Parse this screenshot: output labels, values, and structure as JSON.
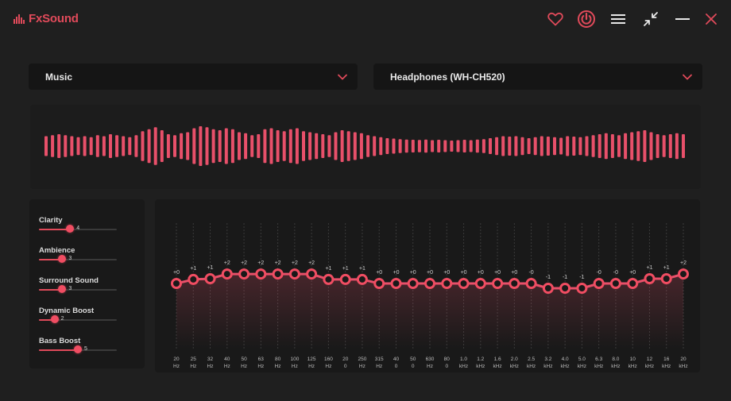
{
  "app": {
    "name": "FxSound"
  },
  "colors": {
    "accent": "#e8506a",
    "background": "#1f1f1f",
    "panel": "#191919"
  },
  "titlebar": {
    "icons": [
      "heart-icon",
      "power-icon",
      "menu-icon",
      "minimize-window-icon",
      "minimize-icon",
      "close-icon"
    ]
  },
  "preset": {
    "label": "Music",
    "icon": "chevron-down-icon"
  },
  "output_device": {
    "label": "Headphones (WH-CH520)",
    "icon": "chevron-down-icon"
  },
  "visualizer": {
    "levels": [
      0.5,
      0.55,
      0.6,
      0.55,
      0.5,
      0.45,
      0.5,
      0.45,
      0.55,
      0.5,
      0.6,
      0.55,
      0.5,
      0.45,
      0.55,
      0.75,
      0.85,
      0.95,
      0.8,
      0.6,
      0.55,
      0.65,
      0.7,
      0.9,
      1.0,
      0.95,
      0.85,
      0.8,
      0.9,
      0.85,
      0.7,
      0.65,
      0.55,
      0.6,
      0.85,
      0.9,
      0.8,
      0.75,
      0.85,
      0.9,
      0.75,
      0.7,
      0.65,
      0.6,
      0.55,
      0.7,
      0.8,
      0.75,
      0.7,
      0.65,
      0.55,
      0.5,
      0.45,
      0.4,
      0.38,
      0.35,
      0.33,
      0.32,
      0.31,
      0.33,
      0.3,
      0.32,
      0.3,
      0.28,
      0.3,
      0.32,
      0.3,
      0.33,
      0.35,
      0.4,
      0.45,
      0.5,
      0.48,
      0.5,
      0.45,
      0.4,
      0.45,
      0.5,
      0.48,
      0.45,
      0.42,
      0.5,
      0.48,
      0.45,
      0.5,
      0.55,
      0.6,
      0.65,
      0.6,
      0.55,
      0.65,
      0.7,
      0.75,
      0.8,
      0.7,
      0.6,
      0.55,
      0.6,
      0.65,
      0.6
    ]
  },
  "effects": [
    {
      "name": "Clarity",
      "value": "4",
      "level": 0.4
    },
    {
      "name": "Ambience",
      "value": "3",
      "level": 0.3
    },
    {
      "name": "Surround Sound",
      "value": "3",
      "level": 0.3
    },
    {
      "name": "Dynamic Boost",
      "value": "2",
      "level": 0.2
    },
    {
      "name": "Bass Boost",
      "value": "5",
      "level": 0.5
    }
  ],
  "equalizer": {
    "bands": [
      {
        "freq": [
          "20",
          "Hz"
        ],
        "gain_label": "+0",
        "gain": 0
      },
      {
        "freq": [
          "25",
          "Hz"
        ],
        "gain_label": "+1",
        "gain": 0.6
      },
      {
        "freq": [
          "32",
          "Hz"
        ],
        "gain_label": "+1",
        "gain": 0.7
      },
      {
        "freq": [
          "40",
          "Hz"
        ],
        "gain_label": "+2",
        "gain": 1.4
      },
      {
        "freq": [
          "50",
          "Hz"
        ],
        "gain_label": "+2",
        "gain": 1.4
      },
      {
        "freq": [
          "63",
          "Hz"
        ],
        "gain_label": "+2",
        "gain": 1.4
      },
      {
        "freq": [
          "80",
          "Hz"
        ],
        "gain_label": "+2",
        "gain": 1.4
      },
      {
        "freq": [
          "100",
          "Hz"
        ],
        "gain_label": "+2",
        "gain": 1.4
      },
      {
        "freq": [
          "125",
          "Hz"
        ],
        "gain_label": "+2",
        "gain": 1.4
      },
      {
        "freq": [
          "160",
          "Hz"
        ],
        "gain_label": "+1",
        "gain": 0.6
      },
      {
        "freq": [
          "20",
          "0"
        ],
        "gain_label": "+1",
        "gain": 0.6
      },
      {
        "freq": [
          "250",
          "Hz"
        ],
        "gain_label": "+1",
        "gain": 0.6
      },
      {
        "freq": [
          "315",
          "Hz"
        ],
        "gain_label": "+0",
        "gain": 0
      },
      {
        "freq": [
          "40",
          "0"
        ],
        "gain_label": "+0",
        "gain": 0
      },
      {
        "freq": [
          "50",
          "0"
        ],
        "gain_label": "+0",
        "gain": 0
      },
      {
        "freq": [
          "630",
          "Hz"
        ],
        "gain_label": "+0",
        "gain": 0
      },
      {
        "freq": [
          "80",
          "0"
        ],
        "gain_label": "+0",
        "gain": 0
      },
      {
        "freq": [
          "1.0",
          "kHz"
        ],
        "gain_label": "+0",
        "gain": 0
      },
      {
        "freq": [
          "1.2",
          "kHz"
        ],
        "gain_label": "+0",
        "gain": 0
      },
      {
        "freq": [
          "1.6",
          "kHz"
        ],
        "gain_label": "+0",
        "gain": 0
      },
      {
        "freq": [
          "2.0",
          "kHz"
        ],
        "gain_label": "+0",
        "gain": 0
      },
      {
        "freq": [
          "2.5",
          "kHz"
        ],
        "gain_label": "-0",
        "gain": 0
      },
      {
        "freq": [
          "3.2",
          "kHz"
        ],
        "gain_label": "-1",
        "gain": -0.7
      },
      {
        "freq": [
          "4.0",
          "kHz"
        ],
        "gain_label": "-1",
        "gain": -0.7
      },
      {
        "freq": [
          "5.0",
          "kHz"
        ],
        "gain_label": "-1",
        "gain": -0.7
      },
      {
        "freq": [
          "6.3",
          "kHz"
        ],
        "gain_label": "-0",
        "gain": 0
      },
      {
        "freq": [
          "8.0",
          "kHz"
        ],
        "gain_label": "-0",
        "gain": 0
      },
      {
        "freq": [
          "10",
          "kHz"
        ],
        "gain_label": "+0",
        "gain": 0
      },
      {
        "freq": [
          "12",
          "kHz"
        ],
        "gain_label": "+1",
        "gain": 0.7
      },
      {
        "freq": [
          "16",
          "kHz"
        ],
        "gain_label": "+1",
        "gain": 0.7
      },
      {
        "freq": [
          "20",
          "kHz"
        ],
        "gain_label": "+2",
        "gain": 1.4
      }
    ]
  }
}
